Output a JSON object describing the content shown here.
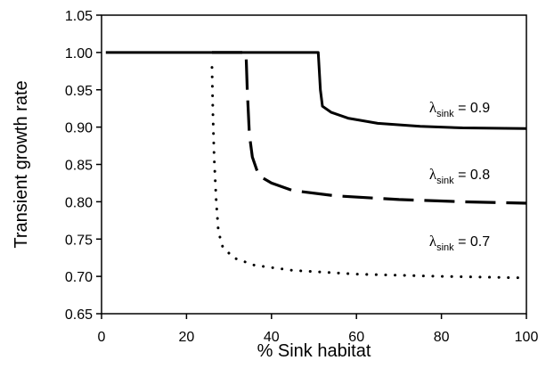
{
  "chart_data": {
    "type": "line",
    "title": "",
    "xlabel": "% Sink habitat",
    "ylabel": "Transient growth rate",
    "xlim": [
      0,
      100
    ],
    "ylim": [
      0.65,
      1.05
    ],
    "x_ticks": [
      "0",
      "20",
      "40",
      "60",
      "80",
      "100"
    ],
    "y_ticks": [
      "0.65",
      "0.70",
      "0.75",
      "0.80",
      "0.85",
      "0.90",
      "0.95",
      "1.00",
      "1.05"
    ],
    "grid": false,
    "legend": "none",
    "series": [
      {
        "name_symbol": "λ",
        "name_subscript": "sink",
        "name_value": " = 0.9",
        "line_style": "solid",
        "color": "#000000",
        "points": [
          [
            1,
            1.0
          ],
          [
            51,
            1.0
          ],
          [
            51.5,
            0.95
          ],
          [
            52,
            0.928
          ],
          [
            54,
            0.92
          ],
          [
            58,
            0.912
          ],
          [
            65,
            0.905
          ],
          [
            75,
            0.901
          ],
          [
            85,
            0.899
          ],
          [
            100,
            0.898
          ]
        ]
      },
      {
        "name_symbol": "λ",
        "name_subscript": "sink",
        "name_value": " = 0.8",
        "line_style": "dashed",
        "color": "#000000",
        "points": [
          [
            26,
            1.0
          ],
          [
            34,
            1.0
          ],
          [
            34.3,
            0.95
          ],
          [
            34.8,
            0.89
          ],
          [
            35.5,
            0.86
          ],
          [
            37,
            0.835
          ],
          [
            40,
            0.825
          ],
          [
            45,
            0.815
          ],
          [
            55,
            0.808
          ],
          [
            70,
            0.803
          ],
          [
            85,
            0.8
          ],
          [
            100,
            0.798
          ]
        ]
      },
      {
        "name_symbol": "λ",
        "name_subscript": "sink",
        "name_value": " = 0.7",
        "line_style": "dotted",
        "color": "#000000",
        "points": [
          [
            26,
            0.98
          ],
          [
            26.2,
            0.92
          ],
          [
            26.5,
            0.86
          ],
          [
            27,
            0.8
          ],
          [
            27.5,
            0.76
          ],
          [
            28.5,
            0.74
          ],
          [
            31,
            0.725
          ],
          [
            36,
            0.715
          ],
          [
            45,
            0.708
          ],
          [
            60,
            0.703
          ],
          [
            80,
            0.7
          ],
          [
            100,
            0.698
          ]
        ]
      }
    ]
  }
}
